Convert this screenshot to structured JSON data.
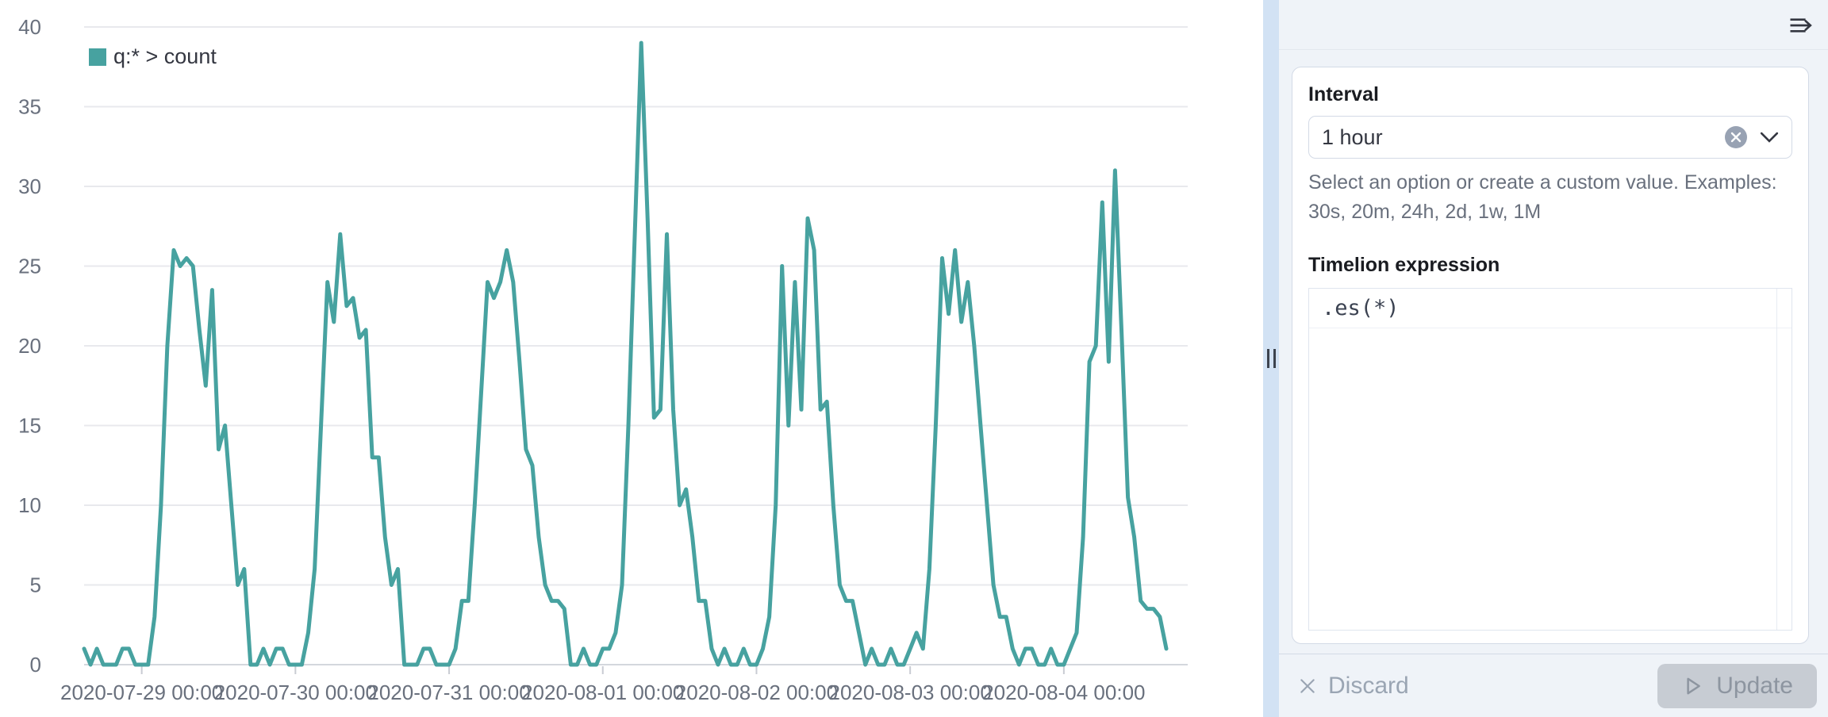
{
  "legend": {
    "label": "q:* > count"
  },
  "colors": {
    "series": "#47a2a0",
    "grid": "#e8e9ed",
    "axis_baseline": "#d4d7dd",
    "axis_text": "#69707d",
    "resizer": "#d2e2f4",
    "panel_bg": "#eff3f8",
    "disabled_text": "#9aa5b3"
  },
  "icons": {
    "panel_toggle": "menu-right-arrow",
    "interval_clear": "cross-in-circle",
    "interval_dropdown": "chevron-down",
    "discard": "cross",
    "update": "play-outline"
  },
  "panel": {
    "interval_label": "Interval",
    "interval_value": "1 hour",
    "interval_help": "Select an option or create a custom value. Examples: 30s, 20m, 24h, 2d, 1w, 1M",
    "expression_label": "Timelion expression",
    "expression_value": ".es(*)",
    "discard_label": "Discard",
    "update_label": "Update"
  },
  "chart_data": {
    "type": "line",
    "title": "",
    "xlabel": "",
    "ylabel": "",
    "ylim": [
      0,
      40
    ],
    "y_ticks": [
      0,
      5,
      10,
      15,
      20,
      25,
      30,
      35,
      40
    ],
    "grid": true,
    "legend_position": "top-left",
    "x_start": "2020-07-28 15:00",
    "x_interval": "1h",
    "x_tick_labels": [
      "2020-07-29 00:00",
      "2020-07-30 00:00",
      "2020-07-31 00:00",
      "2020-08-01 00:00",
      "2020-08-02 00:00",
      "2020-08-03 00:00",
      "2020-08-04 00:00"
    ],
    "x_tick_indices": [
      9,
      33,
      57,
      81,
      105,
      129,
      153
    ],
    "series": [
      {
        "name": "q:* > count",
        "color": "#47a2a0",
        "values": [
          1,
          0,
          1,
          0,
          0,
          0,
          1,
          1,
          0,
          0,
          0,
          3,
          10,
          20,
          26,
          25,
          25.5,
          25,
          21,
          17.5,
          23.5,
          13.5,
          15,
          10,
          5,
          6,
          0,
          0,
          1,
          0,
          1,
          1,
          0,
          0,
          0,
          2,
          6,
          15,
          24,
          21.5,
          27,
          22.5,
          23,
          20.5,
          21,
          13,
          13,
          8,
          5,
          6,
          0,
          0,
          0,
          1,
          1,
          0,
          0,
          0,
          1,
          4,
          4,
          10,
          17,
          24,
          23,
          24,
          26,
          24,
          19,
          13.5,
          12.5,
          8,
          5,
          4,
          4,
          3.5,
          0,
          0,
          1,
          0,
          0,
          1,
          1,
          2,
          5,
          15,
          27,
          39,
          28,
          15.5,
          16,
          27,
          16,
          10,
          11,
          8,
          4,
          4,
          1,
          0,
          1,
          0,
          0,
          1,
          0,
          0,
          1,
          3,
          10,
          25,
          15,
          24,
          16,
          28,
          26,
          16,
          16.5,
          10,
          5,
          4,
          4,
          2,
          0,
          1,
          0,
          0,
          1,
          0,
          0,
          1,
          2,
          1,
          6,
          15,
          25.5,
          22,
          26,
          21.5,
          24,
          20,
          15,
          10,
          5,
          3,
          3,
          1,
          0,
          1,
          1,
          0,
          0,
          1,
          0,
          0,
          1,
          2,
          8,
          19,
          20,
          29,
          19,
          31,
          21,
          10.5,
          8,
          4,
          3.5,
          3.5,
          3,
          1
        ]
      }
    ]
  }
}
